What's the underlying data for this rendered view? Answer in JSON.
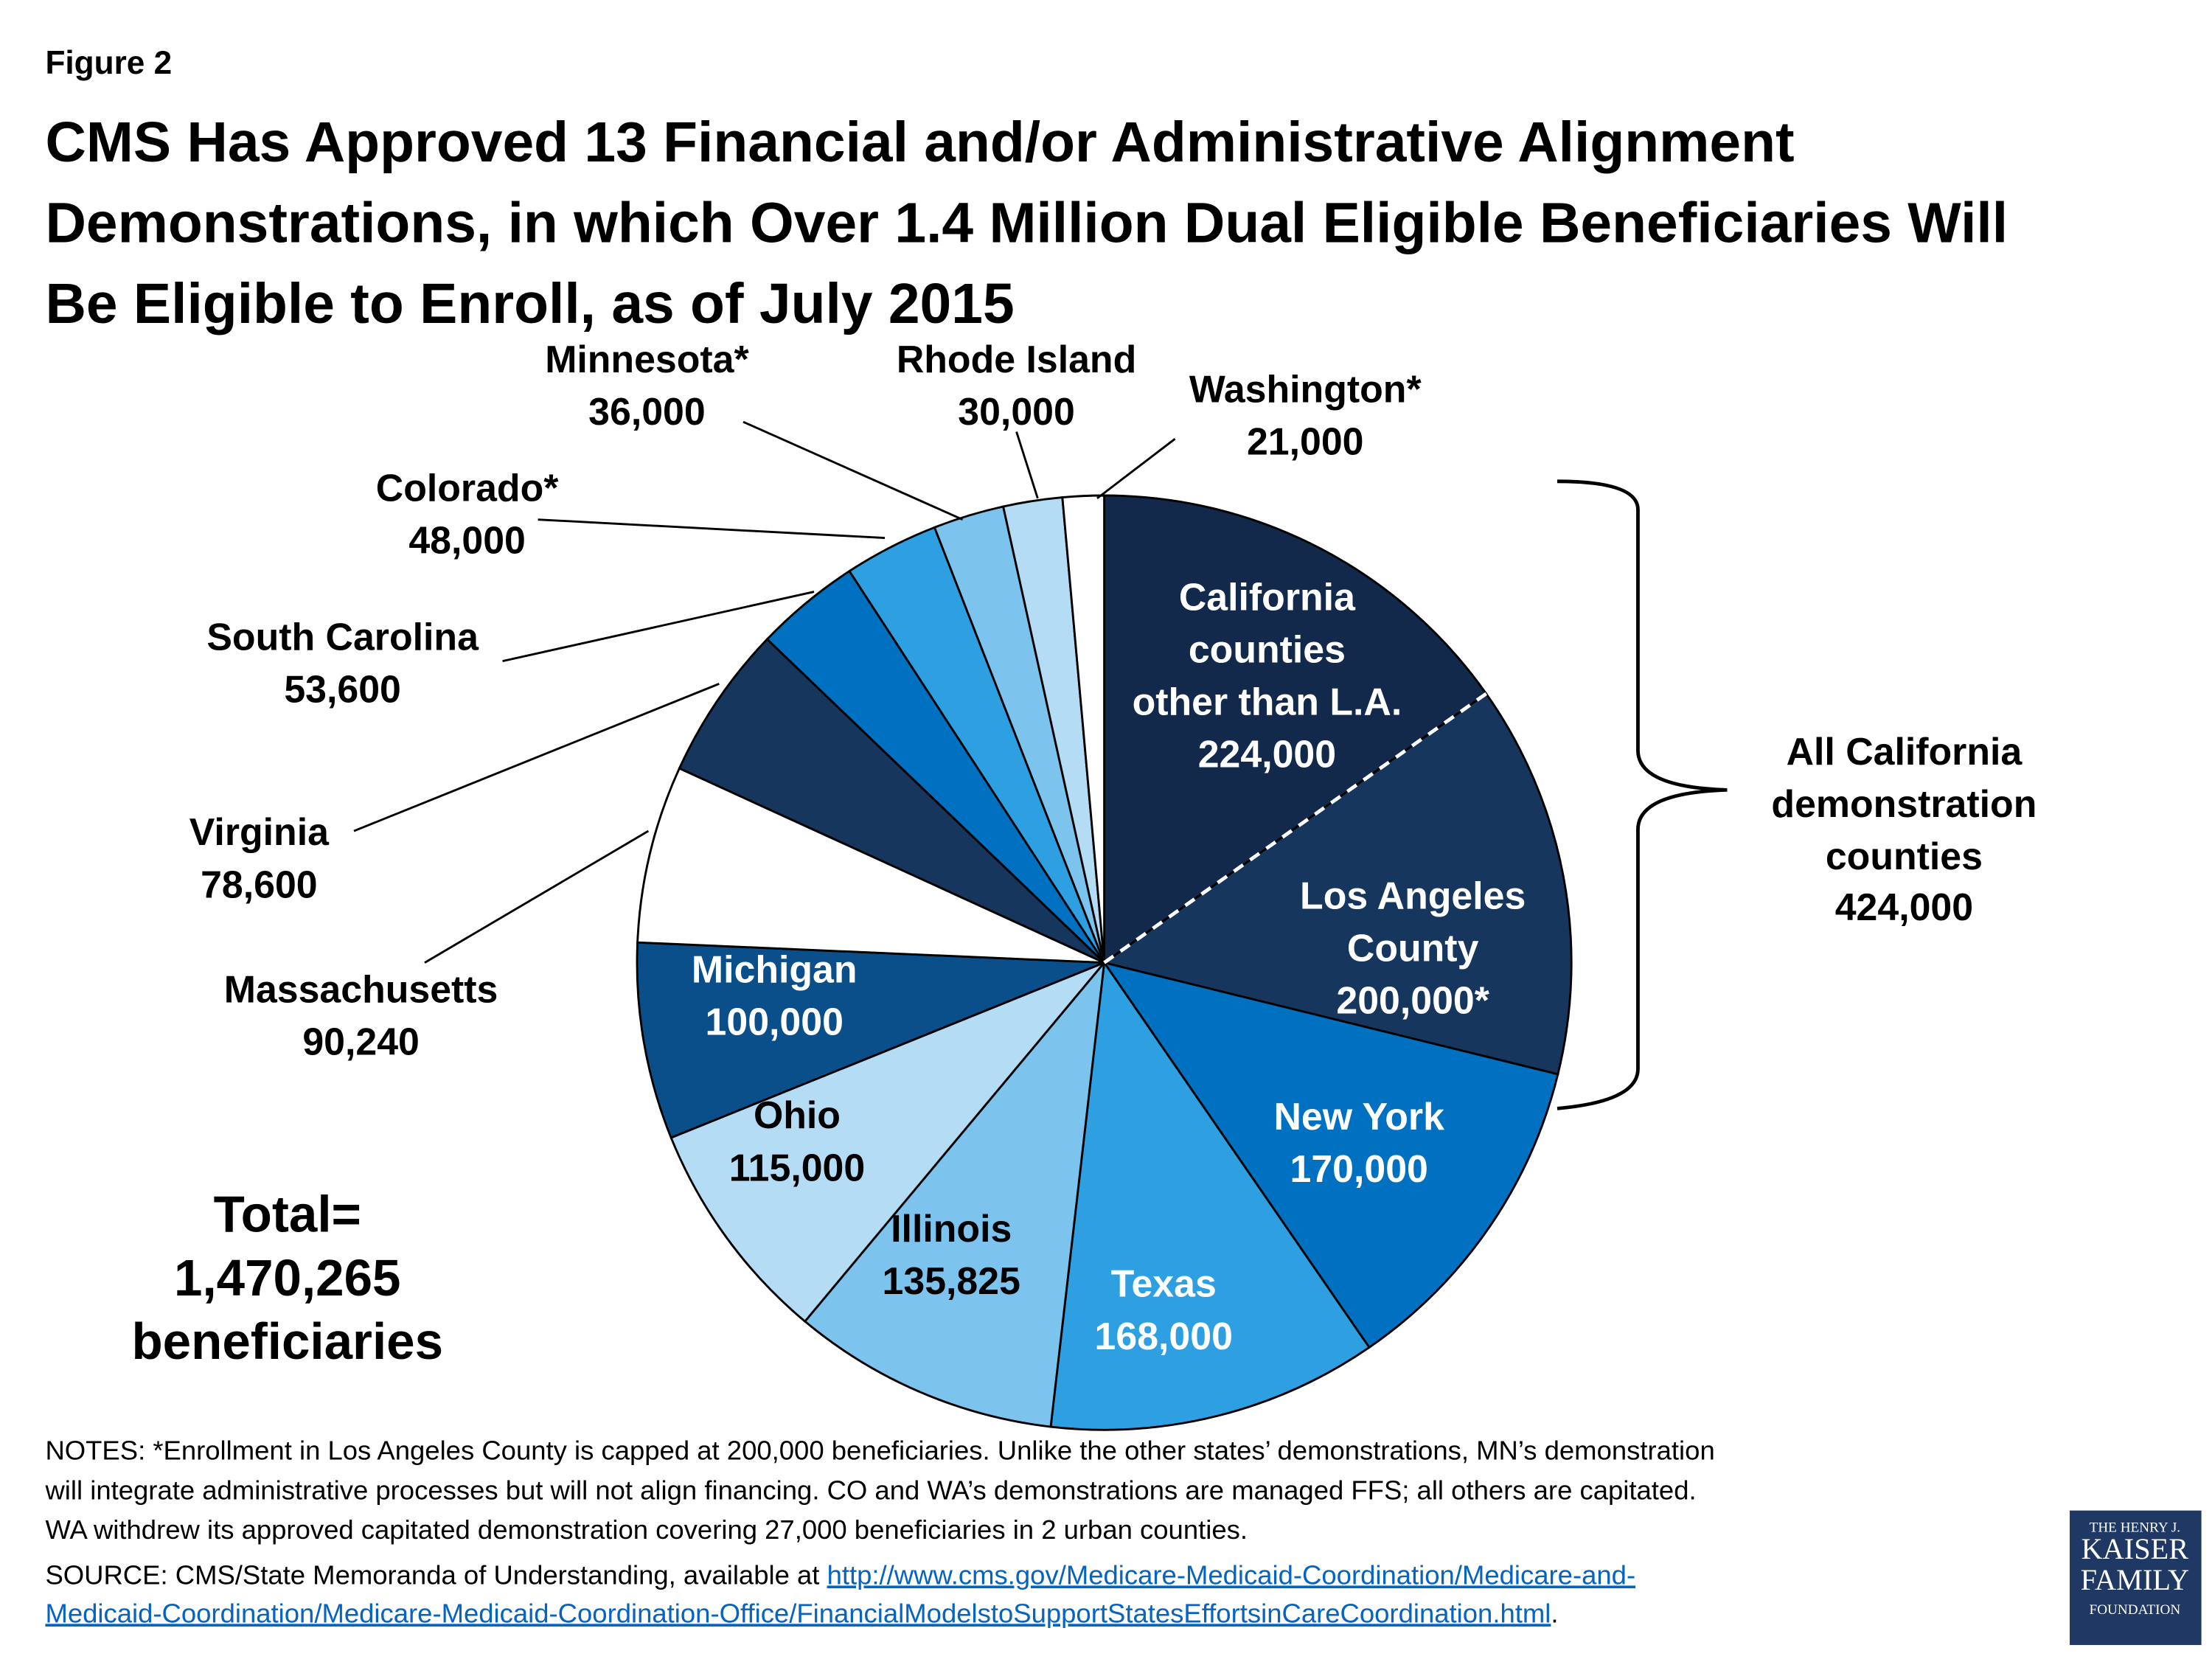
{
  "figure_label": "Figure 2",
  "chart_data": {
    "type": "pie",
    "title": "CMS Has Approved 13 Financial and/or Administrative Alignment\nDemonstrations, in which Over 1.4 Million Dual Eligible Beneficiaries Will\nBe Eligible to Enroll, as of July 2015",
    "categories": [
      "California\ncounties\nother than L.A.",
      "Los Angeles\nCounty",
      "New York",
      "Texas",
      "Illinois",
      "Ohio",
      "Michigan",
      "Massachusetts",
      "Virginia",
      "South Carolina",
      "Colorado*",
      "Minnesota*",
      "Rhode Island",
      "Washington*"
    ],
    "values": [
      224000,
      200000,
      170000,
      168000,
      135825,
      115000,
      100000,
      90240,
      78600,
      53600,
      48000,
      36000,
      30000,
      21000
    ],
    "value_labels": [
      "224,000",
      "200,000*",
      "170,000",
      "168,000",
      "135,825",
      "115,000",
      "100,000",
      "90,240",
      "78,600",
      "53,600",
      "48,000",
      "36,000",
      "30,000",
      "21,000"
    ],
    "colors": [
      "#13294b",
      "#17365d",
      "#0070c0",
      "#2e9fe0",
      "#7cc3ee",
      "#b4dcf4",
      "#0a4f8a",
      "#ffffff",
      "#17365d",
      "#0070c0",
      "#2e9fe0",
      "#7cc3ee",
      "#b4dcf4",
      "#ffffff"
    ],
    "group_label": "All California\ndemonstration\ncounties",
    "group_value_label": "424,000",
    "total_label": "Total=\n1,470,265\nbeneficiaries"
  },
  "notes": [
    "NOTES:  *Enrollment in Los Angeles County is capped at 200,000 beneficiaries. Unlike the other states’ demonstrations, MN’s demonstration",
    "will integrate administrative processes but will not align financing.  CO and WA’s demonstrations are managed FFS; all others are capitated.",
    "WA withdrew its approved capitated demonstration covering 27,000 beneficiaries in 2 urban counties."
  ],
  "source": {
    "text": "SOURCE:  CMS/State Memoranda of Understanding, available at ",
    "url_1": "http://www.cms.gov/Medicare-Medicaid-Coordination/Medicare-and-",
    "url_2": "Medicaid-Coordination/Medicare-Medicaid-Coordination-Office/FinancialModelstoSupportStatesEffortsinCareCoordination.html",
    "end": "."
  },
  "logo": "THE HENRY J.\nKAISER\nFAMILY\nFOUNDATION"
}
